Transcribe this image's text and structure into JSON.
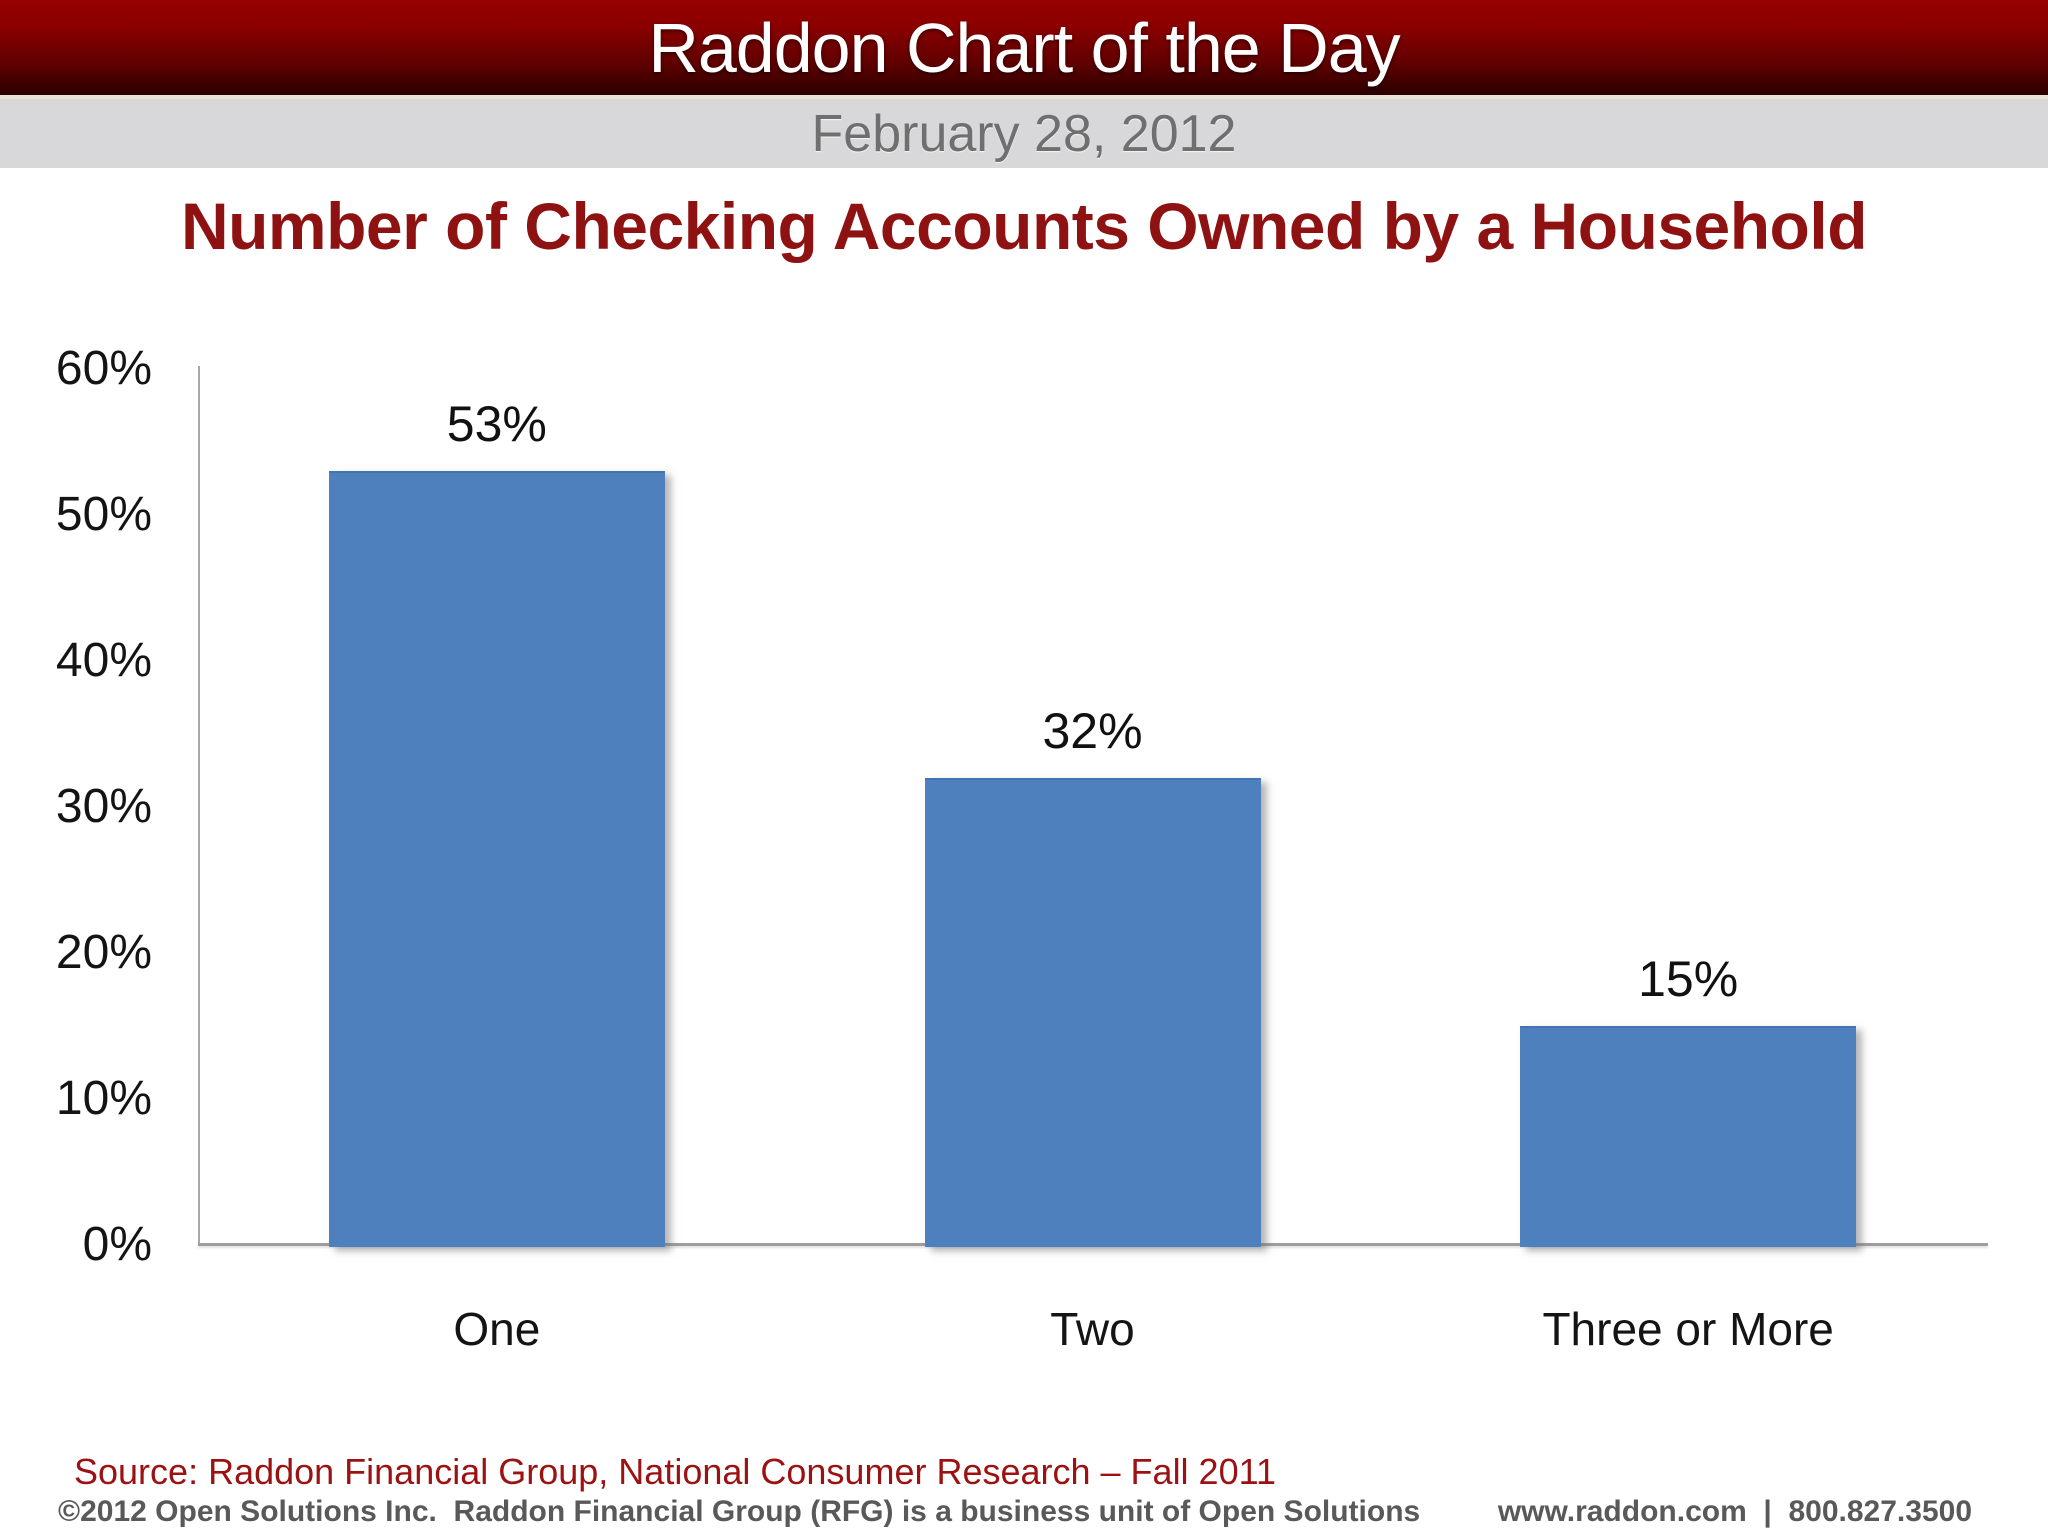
{
  "header": {
    "title": "Raddon Chart of the Day",
    "date": "February 28, 2012"
  },
  "chart_title": "Number of Checking Accounts Owned by a Household",
  "chart_data": {
    "type": "bar",
    "title": "Number of Checking Accounts Owned by a Household",
    "categories": [
      "One",
      "Two",
      "Three or More"
    ],
    "values": [
      53,
      32,
      15
    ],
    "labels": [
      "53%",
      "32%",
      "15%"
    ],
    "xlabel": "",
    "ylabel": "",
    "ylim": [
      0,
      60
    ],
    "y_ticks": [
      "60%",
      "50%",
      "40%",
      "30%",
      "20%",
      "10%",
      "0%"
    ],
    "grid": "off",
    "legend": "none",
    "bar_color": "#4e80be"
  },
  "footer": {
    "source": "Source: Raddon Financial Group, National Consumer Research – Fall 2011",
    "copyright": "©2012 Open Solutions Inc.  Raddon Financial Group (RFG) is a business unit of Open Solutions",
    "contact": "www.raddon.com  |  800.827.3500"
  },
  "colors": {
    "header_red_top": "#970101",
    "header_red_bottom": "#2c0000",
    "date_band_bg": "#d8d8da",
    "date_text": "#6f6f6f",
    "title_red": "#8f1213",
    "source_red": "#9c1111",
    "bar_blue": "#4e80be",
    "axis_gray": "#a8a8a8",
    "footer_gray": "#595959"
  }
}
